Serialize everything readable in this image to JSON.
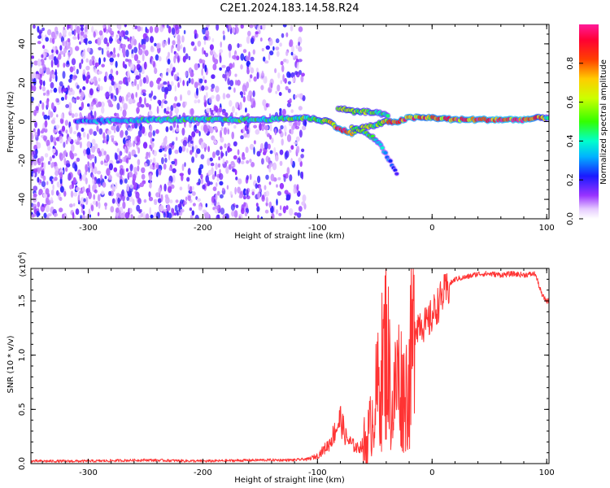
{
  "figure_title": "C2E1.2024.183.14.58.R24",
  "colorbar": {
    "label": "Normalized spectral amplitude",
    "ticks": [
      "0.0",
      "0.2",
      "0.4",
      "0.6",
      "0.8"
    ],
    "tick_values": [
      0.0,
      0.2,
      0.4,
      0.6,
      0.8
    ],
    "range": [
      0,
      1
    ],
    "colormap": "rainbow (white → purple → blue → cyan → green → yellow → red → magenta)"
  },
  "chart_data": [
    {
      "type": "heatmap",
      "title": "",
      "xlabel": "Height of straight line (km)",
      "ylabel": "Frequency (Hz)",
      "xlim": [
        -350,
        102
      ],
      "ylim": [
        -50,
        50
      ],
      "x_ticks": [
        -300,
        -200,
        -100,
        0,
        100
      ],
      "x_tick_labels": [
        "-300",
        "-200",
        "-100",
        "0",
        "100"
      ],
      "y_ticks": [
        -40,
        -20,
        0,
        20,
        40
      ],
      "y_tick_labels": [
        "-40",
        "-20",
        "0",
        "20",
        "40"
      ],
      "grid": false,
      "description_points": {
        "noise_region_x": [
          -350,
          -110
        ],
        "main_line": {
          "x": [
            -310,
            -245,
            -200,
            -150,
            -110,
            -90,
            -80,
            -70,
            -60,
            -50,
            -40,
            -30,
            -20,
            -10,
            0,
            20,
            50,
            80,
            95,
            102
          ],
          "freq": [
            0,
            1,
            1,
            1,
            2,
            0,
            -4,
            -6,
            -3,
            -2,
            0,
            0,
            2,
            2,
            2,
            1,
            1,
            1,
            2,
            2
          ],
          "amplitude": [
            0.3,
            0.4,
            0.45,
            0.45,
            0.5,
            0.6,
            0.9,
            0.85,
            0.6,
            0.5,
            0.7,
            0.9,
            0.85,
            0.8,
            0.8,
            0.85,
            0.9,
            0.95,
            0.7,
            0.4
          ]
        },
        "upper_branch": {
          "x": [
            -82,
            -75,
            -68,
            -60,
            -52,
            -45,
            -38
          ],
          "freq": [
            7,
            6,
            5,
            5,
            5,
            4,
            3
          ],
          "amplitude": [
            0.5,
            0.6,
            0.6,
            0.55,
            0.5,
            0.45,
            0.4
          ]
        },
        "lower_tail": {
          "x": [
            -70,
            -60,
            -52,
            -45,
            -40,
            -35,
            -30
          ],
          "freq": [
            -3,
            -5,
            -8,
            -12,
            -17,
            -22,
            -28
          ],
          "amplitude": [
            0.6,
            0.55,
            0.45,
            0.35,
            0.3,
            0.25,
            0.15
          ]
        }
      }
    },
    {
      "type": "line",
      "title": "",
      "xlabel": "Height of straight line (km)",
      "ylabel": "SNR (10 * v/v)",
      "y_scale_label": "(x10",
      "y_scale_exp": "4",
      "y_scale_suffix": ")",
      "xlim": [
        -350,
        102
      ],
      "ylim": [
        0,
        1.8
      ],
      "x_ticks": [
        -300,
        -200,
        -100,
        0,
        100
      ],
      "x_tick_labels": [
        "-300",
        "-200",
        "-100",
        "0",
        "100"
      ],
      "y_ticks": [
        0,
        0.5,
        1.0,
        1.5
      ],
      "y_tick_labels": [
        "0.0",
        "0.5",
        "1.0",
        "1.5"
      ],
      "grid": false,
      "series": [
        {
          "color": "#ff3333",
          "x": [
            -350,
            -300,
            -250,
            -200,
            -150,
            -120,
            -110,
            -100,
            -90,
            -85,
            -80,
            -75,
            -70,
            -65,
            -60,
            -55,
            -50,
            -45,
            -40,
            -38,
            -35,
            -30,
            -25,
            -20,
            -18,
            -15,
            -10,
            -5,
            0,
            5,
            10,
            15,
            20,
            30,
            40,
            50,
            60,
            70,
            80,
            90,
            93,
            96,
            100,
            102
          ],
          "y": [
            0.01,
            0.01,
            0.02,
            0.01,
            0.02,
            0.02,
            0.03,
            0.06,
            0.15,
            0.25,
            0.35,
            0.2,
            0.15,
            0.12,
            0.15,
            0.3,
            0.6,
            0.85,
            1.2,
            1.0,
            0.5,
            0.9,
            0.7,
            0.8,
            1.1,
            1.3,
            1.35,
            1.3,
            1.4,
            1.5,
            1.6,
            1.65,
            1.7,
            1.72,
            1.75,
            1.75,
            1.74,
            1.75,
            1.74,
            1.75,
            1.65,
            1.55,
            1.5,
            1.5
          ]
        }
      ]
    }
  ]
}
